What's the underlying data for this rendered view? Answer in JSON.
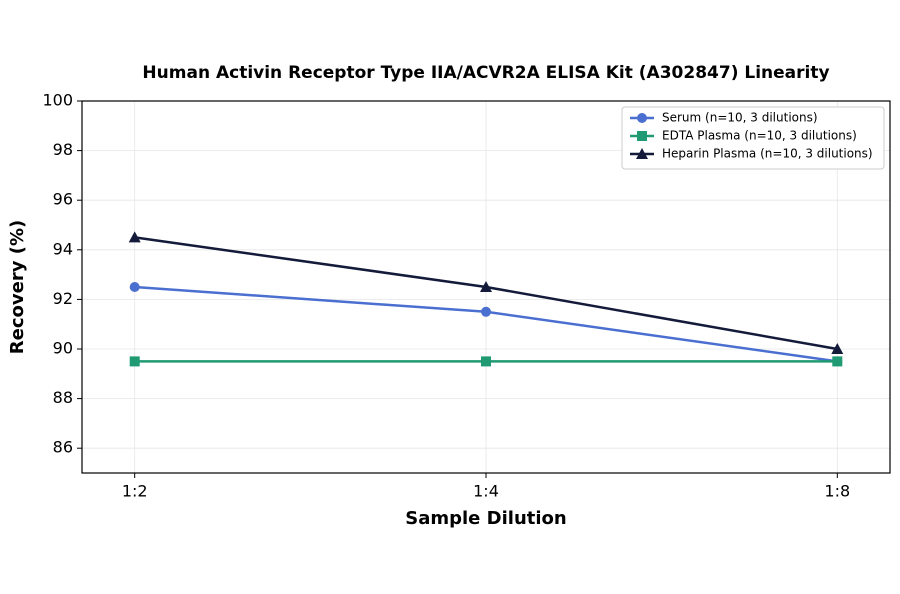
{
  "chart_data": {
    "type": "line",
    "title": "Human Activin Receptor Type IIA/ACVR2A ELISA Kit (A302847) Linearity",
    "x_label": "Sample Dilution",
    "y_label": "Recovery (%)",
    "categories": [
      "1:2",
      "1:4",
      "1:8"
    ],
    "series": [
      {
        "name": "Serum (n=10, 3 dilutions)",
        "color": "#4a6fd0",
        "marker": "circle",
        "values": [
          92.5,
          91.5,
          89.5
        ]
      },
      {
        "name": "EDTA Plasma (n=10, 3 dilutions)",
        "color": "#1f9a72",
        "marker": "square",
        "values": [
          89.5,
          89.5,
          89.5
        ]
      },
      {
        "name": "Heparin Plasma (n=10, 3 dilutions)",
        "color": "#141a3a",
        "marker": "triangle",
        "values": [
          94.5,
          92.5,
          90.0
        ]
      }
    ],
    "ylim": [
      85,
      100
    ],
    "yticks": [
      86,
      88,
      90,
      92,
      94,
      96,
      98,
      100
    ],
    "grid": true,
    "legend": "upper right"
  }
}
